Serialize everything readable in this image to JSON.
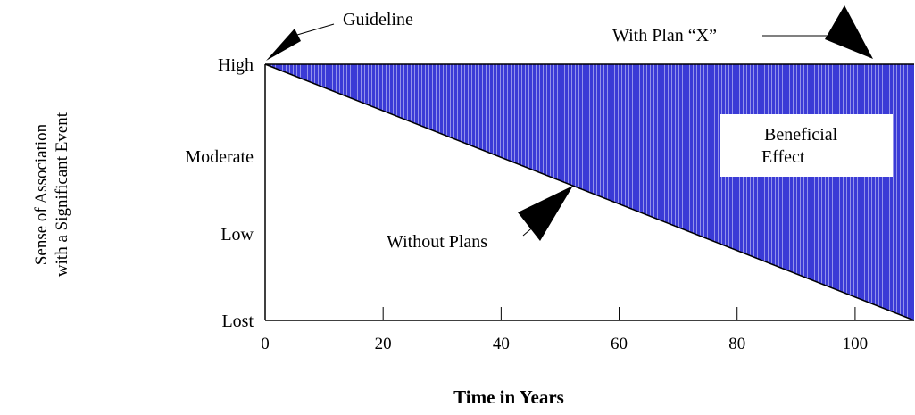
{
  "colors": {
    "fill": "#3b3bd6",
    "hatch": "#a9a9f0",
    "text": "#000000",
    "box": "#ffffff"
  },
  "chart_data": {
    "type": "area",
    "title": "",
    "xlabel": "Time in Years",
    "ylabel_lines": [
      "Sense of Association",
      "with a Significant Event"
    ],
    "x_ticks": [
      0,
      20,
      40,
      60,
      80,
      100
    ],
    "xlim": [
      0,
      110
    ],
    "y_categories": [
      "Lost",
      "Low",
      "Moderate",
      "High"
    ],
    "series": [
      {
        "name": "With Plan “X”",
        "x": [
          0,
          110
        ],
        "y": [
          "High",
          "High"
        ]
      },
      {
        "name": "Without Plans",
        "x": [
          0,
          110
        ],
        "y": [
          "High",
          "Lost"
        ]
      }
    ],
    "shaded_region": "Beneficial Effect",
    "annotations": {
      "guideline": "Guideline",
      "with_plan": "With Plan “X”",
      "without_plans": "Without Plans",
      "beneficial_line1": "Beneficial",
      "beneficial_line2": "Effect"
    },
    "grid": false,
    "legend": "none"
  }
}
